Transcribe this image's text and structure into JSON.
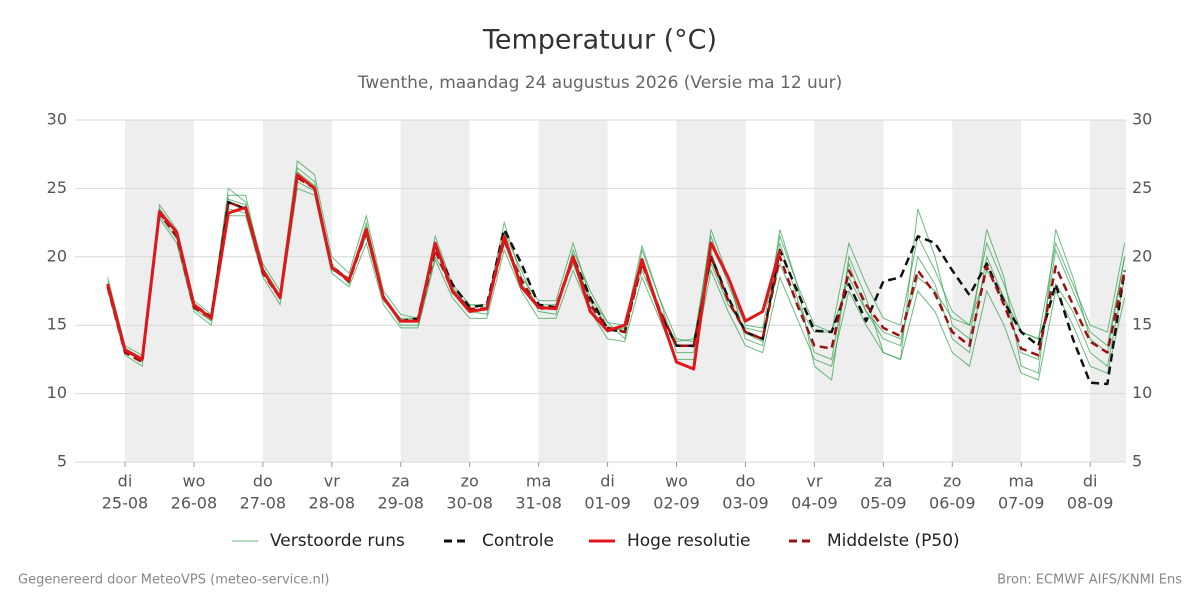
{
  "chart_data": {
    "type": "line",
    "title": "Temperatuur (°C)",
    "subtitle": "Twenthe, maandag 24 augustus 2026 (Versie ma 12 uur)",
    "footer_left": "Gegenereerd door MeteoVPS (meteo-service.nl)",
    "footer_right": "Bron: ECMWF AIFS/KNMI Ens",
    "xlim": [
      -0.725,
      14.52
    ],
    "xticks": [
      {
        "value": 0,
        "label": [
          "di",
          "25-08"
        ]
      },
      {
        "value": 1,
        "label": [
          "wo",
          "26-08"
        ]
      },
      {
        "value": 2,
        "label": [
          "do",
          "27-08"
        ]
      },
      {
        "value": 3,
        "label": [
          "vr",
          "28-08"
        ]
      },
      {
        "value": 4,
        "label": [
          "za",
          "29-08"
        ]
      },
      {
        "value": 5,
        "label": [
          "zo",
          "30-08"
        ]
      },
      {
        "value": 6,
        "label": [
          "ma",
          "31-08"
        ]
      },
      {
        "value": 7,
        "label": [
          "di",
          "01-09"
        ]
      },
      {
        "value": 8,
        "label": [
          "wo",
          "02-09"
        ]
      },
      {
        "value": 9,
        "label": [
          "do",
          "03-09"
        ]
      },
      {
        "value": 10,
        "label": [
          "vr",
          "04-09"
        ]
      },
      {
        "value": 11,
        "label": [
          "za",
          "05-09"
        ]
      },
      {
        "value": 12,
        "label": [
          "zo",
          "06-09"
        ]
      },
      {
        "value": 13,
        "label": [
          "ma",
          "07-09"
        ]
      },
      {
        "value": 14,
        "label": [
          "di",
          "08-09"
        ]
      }
    ],
    "ylim": [
      5,
      30
    ],
    "yticks": [
      5,
      10,
      15,
      20,
      25,
      30
    ],
    "y2lim": [
      5,
      30
    ],
    "y2ticks": [
      5,
      10,
      15,
      20,
      25,
      30
    ],
    "grid": true,
    "legend": "bottom",
    "x": [
      -0.25,
      0,
      0.25,
      0.5,
      0.75,
      1,
      1.25,
      1.5,
      1.75,
      2,
      2.25,
      2.5,
      2.75,
      3,
      3.25,
      3.5,
      3.75,
      4,
      4.25,
      4.5,
      4.75,
      5,
      5.25,
      5.5,
      5.75,
      6,
      6.25,
      6.5,
      6.75,
      7,
      7.25,
      7.5,
      7.75,
      8,
      8.25,
      8.5,
      8.75,
      9,
      9.25,
      9.5,
      9.75,
      10,
      10.25,
      10.5,
      10.75,
      11,
      11.25,
      11.5,
      11.75,
      12,
      12.25,
      12.5,
      12.75,
      13,
      13.25,
      13.5,
      13.75,
      14,
      14.25,
      14.5
    ],
    "ensemble": {
      "name": "Verstoorde runs",
      "color": "#2e9e4a",
      "members": [
        [
          18.5,
          13.5,
          12.8,
          23.8,
          22,
          16.8,
          15.8,
          25,
          24,
          19.5,
          17.5,
          27,
          26,
          20,
          18.8,
          23,
          17.5,
          15.8,
          15.5,
          21.5,
          18,
          16.5,
          16.5,
          22.5,
          18.5,
          16.8,
          16.8,
          21,
          17,
          15.2,
          15,
          20.8,
          17,
          14,
          13.8,
          21.5,
          18,
          15,
          14.8,
          21.5,
          18,
          15,
          14.5,
          21,
          18,
          15.5,
          15,
          21.5,
          19,
          16,
          15,
          21,
          18,
          14.5,
          14,
          21,
          18,
          15,
          14.5,
          21
        ],
        [
          17.5,
          12.8,
          12,
          22.8,
          21,
          16,
          15,
          23,
          23,
          18.5,
          16.5,
          25,
          24.5,
          18.8,
          17.8,
          21,
          16.5,
          14.8,
          14.8,
          19.8,
          17,
          15.5,
          15.5,
          20.5,
          17.5,
          15.5,
          15.5,
          19,
          16,
          14,
          13.8,
          18.5,
          15.5,
          12.5,
          12.5,
          19,
          16,
          13.5,
          13,
          18.5,
          15.5,
          12.5,
          12,
          17.5,
          15,
          13,
          12.5,
          17.5,
          16,
          13,
          12,
          17.5,
          15,
          11.5,
          11,
          17.5,
          15,
          12,
          11.5,
          17
        ],
        [
          18,
          13,
          12.5,
          23.5,
          21.8,
          16.5,
          15.5,
          24.5,
          24.5,
          19,
          17,
          26.5,
          25.5,
          19.5,
          18,
          22.5,
          17.2,
          15,
          15,
          20,
          17.8,
          16,
          15.8,
          21.8,
          19,
          16,
          15.8,
          20.5,
          17.5,
          15.2,
          14,
          20.5,
          17,
          13,
          13,
          22,
          18.5,
          14,
          13.5,
          22,
          18,
          12,
          11,
          20,
          17,
          13,
          12.5,
          23.5,
          20,
          15,
          14,
          22,
          18.5,
          12,
          11.5,
          22,
          18.5,
          14,
          13,
          20
        ],
        [
          17.8,
          13.2,
          12.3,
          23,
          21.3,
          16.2,
          15.3,
          23.5,
          23.2,
          18.8,
          17,
          25.5,
          24.8,
          19,
          18.5,
          21.5,
          16.8,
          15.5,
          15.5,
          21,
          17.3,
          16.5,
          16.3,
          21,
          17.8,
          16.5,
          16.5,
          19.5,
          16.3,
          14.5,
          14.8,
          19,
          16,
          13.8,
          14,
          19.5,
          16.5,
          14.8,
          14.5,
          19.5,
          16.5,
          14.5,
          14.5,
          18.5,
          16,
          14.5,
          14,
          18.5,
          17.5,
          15.5,
          15,
          19,
          17,
          14.5,
          14,
          18,
          16,
          13,
          12,
          18.5
        ],
        [
          18.2,
          13.3,
          12.6,
          23.4,
          21.6,
          16.6,
          15.6,
          24.2,
          23.8,
          19.2,
          17.2,
          26.2,
          25.2,
          19.3,
          18.3,
          22.2,
          17.2,
          15.4,
          15.4,
          20.7,
          17.6,
          16.2,
          16.1,
          21.4,
          18.1,
          16.3,
          16.2,
          20.2,
          16.7,
          14.9,
          14.6,
          19.7,
          16.3,
          13.6,
          13.4,
          20.3,
          17,
          14.4,
          13.8,
          21,
          17,
          13,
          12.5,
          19.5,
          16,
          14,
          13.5,
          20,
          18,
          14,
          13,
          20,
          17,
          13,
          12.5,
          20.5,
          17.5,
          14.5,
          13.5,
          20
        ]
      ]
    },
    "series": [
      {
        "name": "Controle",
        "color": "#111111",
        "dash": true,
        "values": [
          18,
          13.2,
          12.5,
          23.2,
          21.8,
          16.5,
          15.6,
          24,
          23.5,
          19,
          17,
          26,
          25,
          19.3,
          18.3,
          22,
          17,
          15.3,
          15.5,
          20.8,
          18,
          16.3,
          16.5,
          22,
          19.5,
          16.5,
          16.3,
          20,
          17,
          14.7,
          14.5,
          19.8,
          16,
          13.5,
          13.5,
          20,
          17,
          14.5,
          14,
          20.5,
          17.5,
          14.6,
          14.5,
          18,
          15.3,
          18.2,
          18.5,
          21.5,
          21,
          19,
          17.2,
          19.5,
          16.7,
          14.5,
          13.5,
          18,
          14,
          10.8,
          10.7,
          19
        ]
      },
      {
        "name": "Hoge resolutie",
        "color": "#e0161b",
        "dash": false,
        "values": [
          18,
          13.2,
          12.5,
          23.3,
          21.8,
          16.5,
          15.5,
          23.2,
          23.6,
          19,
          17,
          26,
          25,
          19.2,
          18.3,
          22,
          17,
          15.3,
          15.3,
          21,
          17.5,
          16,
          16.2,
          21.5,
          17.8,
          16.3,
          16.2,
          20,
          16,
          14.6,
          15,
          19.8,
          16,
          12.3,
          11.8,
          21,
          18.5,
          15.3,
          16,
          20.5,
          null,
          null,
          null,
          null,
          null,
          null,
          null,
          null,
          null,
          null,
          null,
          null,
          null,
          null,
          null,
          null,
          null,
          null,
          null,
          null
        ]
      },
      {
        "name": "Middelste (P50)",
        "color": "#a01010",
        "dash": true,
        "values": [
          17.8,
          13,
          12.3,
          23.2,
          21.5,
          16.3,
          15.5,
          24,
          23.5,
          18.8,
          17,
          25.8,
          25,
          19.2,
          18.2,
          21.8,
          17,
          15.3,
          15.3,
          20.5,
          17.5,
          16.2,
          16.2,
          21.2,
          18.3,
          16.2,
          16.3,
          19.8,
          16.5,
          14.8,
          14.5,
          19.5,
          16.2,
          13.5,
          13.5,
          20,
          16.8,
          14.5,
          14,
          20,
          16.5,
          13.5,
          13.3,
          19,
          16.5,
          14.8,
          14.2,
          19,
          17.3,
          14.5,
          13.5,
          19.3,
          16.5,
          13.3,
          12.8,
          19.3,
          16.5,
          13.8,
          13,
          19
        ]
      }
    ]
  }
}
